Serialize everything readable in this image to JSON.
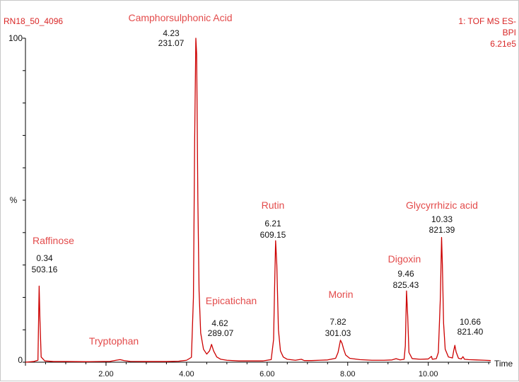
{
  "header": {
    "run_id": "RN18_50_4096",
    "mode_line1": "1: TOF MS ES-",
    "mode_line2": "BPI",
    "intensity": "6.21e5"
  },
  "chart_data": {
    "type": "line",
    "title": "",
    "xlabel": "Time",
    "ylabel": "%",
    "xlim": [
      0.0,
      11.55
    ],
    "ylim": [
      0,
      100
    ],
    "x_ticks": [
      2.0,
      4.0,
      6.0,
      8.0,
      10.0
    ],
    "x_tick_labels": [
      "2.00",
      "4.00",
      "6.00",
      "8.00",
      "10.00"
    ],
    "y_tick_labels": [
      "0",
      "%",
      "100"
    ],
    "grid": false,
    "series": [
      {
        "name": "BPI",
        "color": "#cc0000",
        "points": [
          [
            0.0,
            0
          ],
          [
            0.2,
            0.2
          ],
          [
            0.31,
            0.6
          ],
          [
            0.34,
            23.5
          ],
          [
            0.36,
            13
          ],
          [
            0.39,
            1.6
          ],
          [
            0.48,
            0.4
          ],
          [
            0.7,
            0.2
          ],
          [
            1.0,
            0.2
          ],
          [
            1.5,
            0.15
          ],
          [
            2.1,
            0.25
          ],
          [
            2.25,
            0.6
          ],
          [
            2.35,
            0.8
          ],
          [
            2.45,
            0.5
          ],
          [
            2.6,
            0.25
          ],
          [
            3.0,
            0.2
          ],
          [
            3.5,
            0.2
          ],
          [
            3.8,
            0.3
          ],
          [
            4.0,
            0.6
          ],
          [
            4.12,
            1.5
          ],
          [
            4.17,
            20
          ],
          [
            4.2,
            68
          ],
          [
            4.23,
            100
          ],
          [
            4.25,
            95
          ],
          [
            4.28,
            50
          ],
          [
            4.31,
            22
          ],
          [
            4.35,
            9
          ],
          [
            4.42,
            4
          ],
          [
            4.5,
            2.5
          ],
          [
            4.57,
            3.5
          ],
          [
            4.62,
            5.5
          ],
          [
            4.67,
            3.5
          ],
          [
            4.75,
            1.6
          ],
          [
            4.85,
            0.9
          ],
          [
            5.0,
            0.6
          ],
          [
            5.3,
            0.4
          ],
          [
            5.6,
            0.4
          ],
          [
            5.9,
            0.4
          ],
          [
            6.1,
            0.8
          ],
          [
            6.16,
            7
          ],
          [
            6.18,
            20
          ],
          [
            6.21,
            37.5
          ],
          [
            6.24,
            30
          ],
          [
            6.28,
            10
          ],
          [
            6.33,
            3.5
          ],
          [
            6.4,
            1.6
          ],
          [
            6.5,
            0.9
          ],
          [
            6.7,
            0.6
          ],
          [
            6.85,
            0.9
          ],
          [
            6.92,
            0.5
          ],
          [
            7.1,
            0.5
          ],
          [
            7.3,
            0.6
          ],
          [
            7.5,
            0.7
          ],
          [
            7.7,
            1.2
          ],
          [
            7.76,
            3
          ],
          [
            7.8,
            5.5
          ],
          [
            7.82,
            6.8
          ],
          [
            7.86,
            5.8
          ],
          [
            7.9,
            4
          ],
          [
            7.95,
            2.2
          ],
          [
            8.05,
            1.2
          ],
          [
            8.3,
            0.8
          ],
          [
            8.6,
            0.6
          ],
          [
            8.9,
            0.6
          ],
          [
            9.1,
            0.7
          ],
          [
            9.2,
            1.1
          ],
          [
            9.3,
            0.7
          ],
          [
            9.4,
            0.9
          ],
          [
            9.43,
            5
          ],
          [
            9.46,
            22
          ],
          [
            9.49,
            14
          ],
          [
            9.52,
            3
          ],
          [
            9.6,
            1.1
          ],
          [
            9.8,
            0.9
          ],
          [
            10.0,
            1
          ],
          [
            10.08,
            1.8
          ],
          [
            10.1,
            0.9
          ],
          [
            10.2,
            1.1
          ],
          [
            10.25,
            3
          ],
          [
            10.3,
            20
          ],
          [
            10.33,
            38.5
          ],
          [
            10.35,
            30
          ],
          [
            10.38,
            12
          ],
          [
            10.42,
            4
          ],
          [
            10.5,
            1.6
          ],
          [
            10.6,
            1.3
          ],
          [
            10.63,
            3.5
          ],
          [
            10.66,
            5.2
          ],
          [
            10.69,
            3.2
          ],
          [
            10.75,
            1.2
          ],
          [
            10.82,
            1
          ],
          [
            10.86,
            1.7
          ],
          [
            10.9,
            0.9
          ],
          [
            11.0,
            0.8
          ],
          [
            11.2,
            0.7
          ],
          [
            11.4,
            0.6
          ],
          [
            11.55,
            0.5
          ]
        ]
      }
    ],
    "peaks": [
      {
        "compound": "Raffinose",
        "rt": "0.34",
        "mz": "503.16",
        "x": 0.34,
        "y": 23.5
      },
      {
        "compound": "Tryptophan",
        "x": 2.35,
        "y": 0.8
      },
      {
        "compound": "Camphorsulphonic Acid",
        "rt": "4.23",
        "mz": "231.07",
        "x": 4.23,
        "y": 100
      },
      {
        "compound": "Epicatichan",
        "rt": "4.62",
        "mz": "289.07",
        "x": 4.62,
        "y": 5.5
      },
      {
        "compound": "Rutin",
        "rt": "6.21",
        "mz": "609.15",
        "x": 6.21,
        "y": 37.5
      },
      {
        "compound": "Morin",
        "rt": "7.82",
        "mz": "301.03",
        "x": 7.82,
        "y": 6.8
      },
      {
        "compound": "Digoxin",
        "rt": "9.46",
        "mz": "825.43",
        "x": 9.46,
        "y": 22
      },
      {
        "compound": "Glycyrrhizic acid",
        "rt": "10.33",
        "mz": "821.39",
        "x": 10.33,
        "y": 38.5
      },
      {
        "rt": "10.66",
        "mz": "821.40",
        "x": 10.66,
        "y": 5.2
      }
    ]
  }
}
